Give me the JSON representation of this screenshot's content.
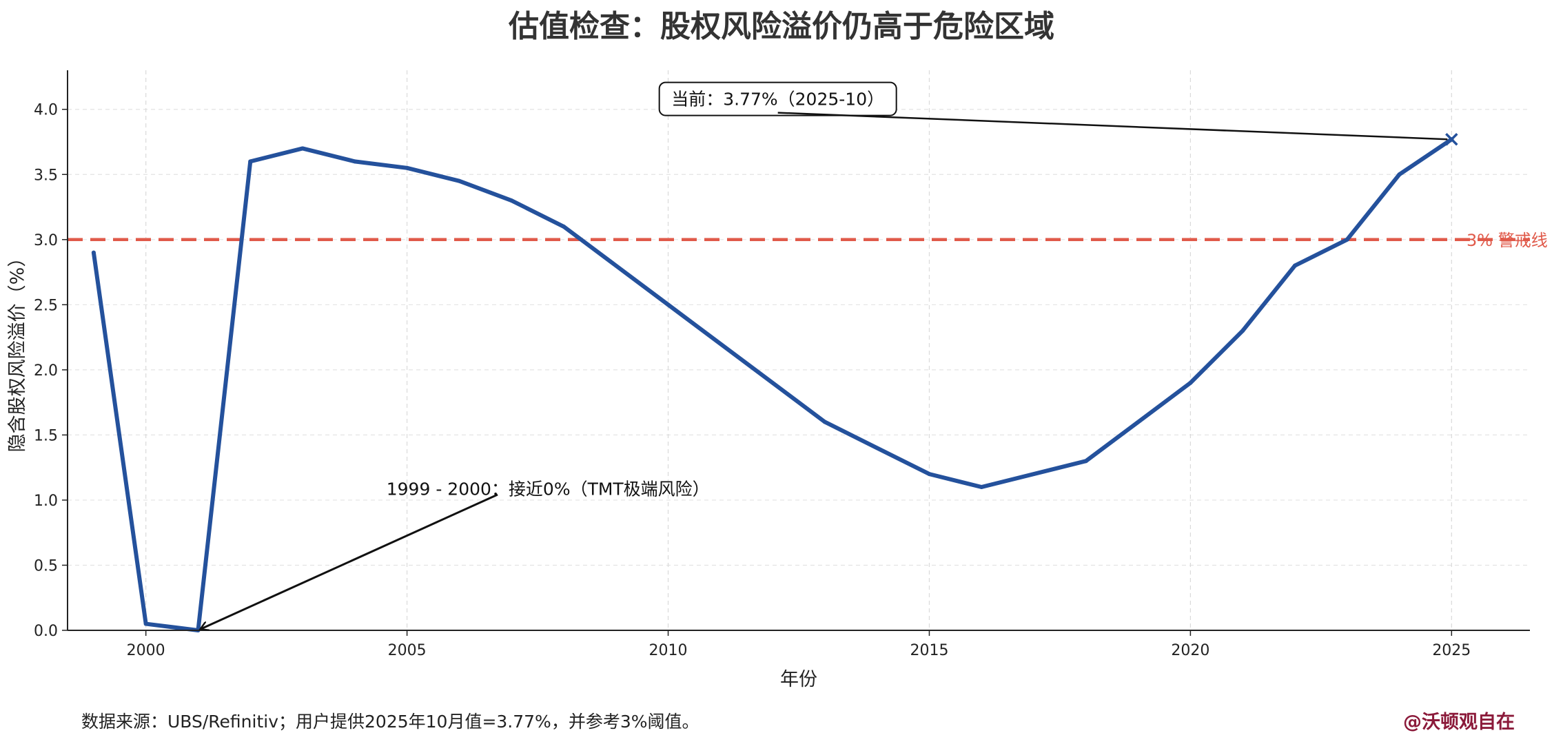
{
  "chart_data": {
    "type": "line",
    "title": "估值检查：股权风险溢价仍高于危险区域",
    "xlabel": "年份",
    "ylabel": "隐含股权风险溢价（%）",
    "xlim": [
      1998.5,
      2026.5
    ],
    "ylim": [
      0,
      4.3
    ],
    "x_ticks": [
      2000,
      2005,
      2010,
      2015,
      2020,
      2025
    ],
    "y_ticks": [
      "0.0",
      "0.5",
      "1.0",
      "1.5",
      "2.0",
      "2.5",
      "3.0",
      "3.5",
      "4.0"
    ],
    "grid": true,
    "series": [
      {
        "color": "#24519c",
        "x": [
          1999,
          2000,
          2001,
          2002,
          2003,
          2004,
          2005,
          2006,
          2007,
          2008,
          2010,
          2013,
          2015,
          2016,
          2018,
          2020,
          2021,
          2022,
          2023,
          2024,
          2025
        ],
        "values": [
          2.9,
          0.05,
          0.0,
          3.6,
          3.7,
          3.6,
          3.55,
          3.45,
          3.3,
          3.1,
          2.5,
          1.6,
          1.2,
          1.1,
          1.3,
          1.9,
          2.3,
          2.8,
          3.0,
          3.5,
          3.77
        ]
      }
    ],
    "threshold": {
      "value": 3.0,
      "label": "3% 警戒线",
      "color": "#e05a4a"
    },
    "annotations": [
      {
        "id": "current",
        "text": "当前：3.77%（2025-10）",
        "x": 2025,
        "y": 3.77,
        "text_x": 2012.1,
        "text_y": 4.08,
        "boxed": true
      },
      {
        "id": "low",
        "text": "1999 - 2000：接近0%（TMT极端风险）",
        "x": 2001,
        "y": 0.0,
        "text_x": 2007.7,
        "text_y": 1.04,
        "boxed": false
      }
    ]
  },
  "footer": {
    "source": "数据来源：UBS/Refinitiv；用户提供2025年10月值=3.77%，并参考3%阈值。",
    "credit": "@沃顿观自在"
  }
}
